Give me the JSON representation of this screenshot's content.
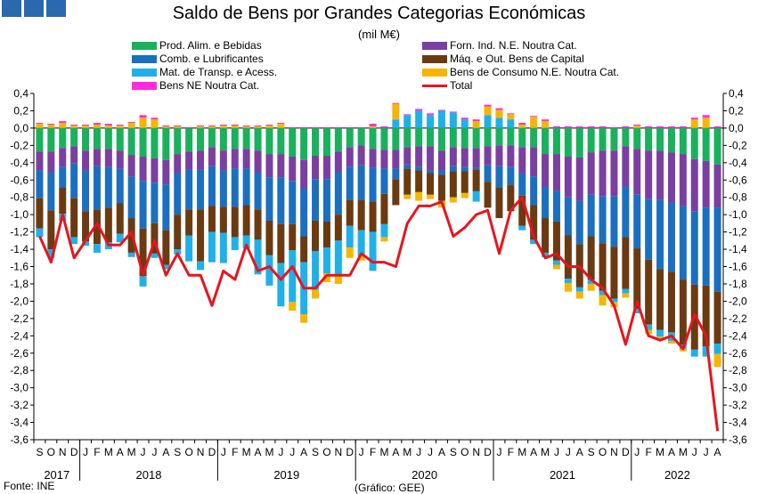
{
  "header": {
    "title": "Saldo de Bens por Grandes Categorias Económicas",
    "subtitle": "(mil M€)"
  },
  "footer": {
    "source": "Fonte: INE",
    "credit": "(Gráfico: GEE)"
  },
  "legend": [
    {
      "label": "Prod. Alim. e Bebidas",
      "color": "#19b15b"
    },
    {
      "label": "Forn. Ind. N.E. Noutra Cat.",
      "color": "#7a3fa0"
    },
    {
      "label": "Comb. e Lubrificantes",
      "color": "#1a6fc0"
    },
    {
      "label": "Máq. e Out. Bens de Capital",
      "color": "#6b3a10"
    },
    {
      "label": "Mat. de Transp. e Acess.",
      "color": "#1fb0ea"
    },
    {
      "label": "Bens de Consumo N.E. Noutra Cat.",
      "color": "#f7b500"
    },
    {
      "label": "Bens NE Noutra Cat.",
      "color": "#ff2be0"
    },
    {
      "label": "Total",
      "color": "#e8141c"
    }
  ],
  "chart_data": {
    "type": "bar",
    "stacked": true,
    "overlay_line": "Total",
    "x_month_labels": [
      "S",
      "O",
      "N",
      "D",
      "J",
      "F",
      "M",
      "A",
      "M",
      "J",
      "J",
      "A",
      "S",
      "O",
      "N",
      "D",
      "J",
      "F",
      "M",
      "A",
      "M",
      "J",
      "J",
      "A",
      "S",
      "O",
      "N",
      "D",
      "J",
      "F",
      "M",
      "A",
      "M",
      "J",
      "J",
      "A",
      "S",
      "O",
      "N",
      "D",
      "J",
      "F",
      "M",
      "A",
      "M",
      "J",
      "J",
      "A",
      "S",
      "O",
      "N",
      "D",
      "J",
      "F",
      "M",
      "A",
      "M",
      "J",
      "J",
      "A"
    ],
    "x_year_labels": [
      {
        "label": "2017",
        "span": 4
      },
      {
        "label": "2018",
        "span": 12
      },
      {
        "label": "2019",
        "span": 12
      },
      {
        "label": "2020",
        "span": 12
      },
      {
        "label": "2021",
        "span": 12
      },
      {
        "label": "2022",
        "span": 8
      }
    ],
    "ylim": [
      -3.6,
      0.4
    ],
    "y_ticks": [
      "0,4",
      "0,2",
      "0,0",
      "-0,2",
      "-0,4",
      "-0,6",
      "-0,8",
      "-1,0",
      "-1,2",
      "-1,4",
      "-1,6",
      "-1,8",
      "-2,0",
      "-2,2",
      "-2,4",
      "-2,6",
      "-2,8",
      "-3,0",
      "-3,2",
      "-3,4",
      "-3,6"
    ],
    "series": [
      {
        "name": "Prod. Alim. e Bebidas",
        "color": "#19b15b",
        "values": [
          -0.27,
          -0.27,
          -0.23,
          -0.21,
          -0.26,
          -0.24,
          -0.24,
          -0.26,
          -0.31,
          -0.33,
          -0.35,
          -0.37,
          -0.3,
          -0.27,
          -0.26,
          -0.22,
          -0.26,
          -0.24,
          -0.24,
          -0.26,
          -0.3,
          -0.3,
          -0.33,
          -0.37,
          -0.32,
          -0.32,
          -0.27,
          -0.22,
          -0.2,
          -0.24,
          -0.25,
          -0.25,
          -0.22,
          -0.21,
          -0.21,
          -0.26,
          -0.22,
          -0.23,
          -0.23,
          -0.21,
          -0.2,
          -0.2,
          -0.22,
          -0.22,
          -0.3,
          -0.3,
          -0.33,
          -0.34,
          -0.28,
          -0.26,
          -0.26,
          -0.21,
          -0.24,
          -0.26,
          -0.26,
          -0.28,
          -0.3,
          -0.36,
          -0.38,
          -0.42
        ]
      },
      {
        "name": "Forn. Ind. N.E. Noutra Cat.",
        "color": "#7a3fa0",
        "values": [
          -0.22,
          -0.24,
          -0.22,
          -0.2,
          -0.23,
          -0.2,
          -0.21,
          -0.21,
          -0.25,
          -0.28,
          -0.28,
          -0.28,
          -0.22,
          -0.21,
          -0.22,
          -0.22,
          -0.23,
          -0.23,
          -0.23,
          -0.25,
          -0.27,
          -0.27,
          -0.28,
          -0.33,
          -0.27,
          -0.27,
          -0.24,
          -0.23,
          -0.23,
          -0.22,
          -0.22,
          -0.22,
          -0.2,
          -0.24,
          -0.28,
          -0.23,
          -0.22,
          -0.22,
          -0.23,
          -0.22,
          -0.24,
          -0.25,
          -0.3,
          -0.34,
          -0.38,
          -0.43,
          -0.47,
          -0.5,
          -0.49,
          -0.53,
          -0.53,
          -0.47,
          -0.53,
          -0.56,
          -0.57,
          -0.58,
          -0.6,
          -0.6,
          -0.54,
          -0.5
        ]
      },
      {
        "name": "Comb. e Lubrificantes",
        "color": "#1a6fc0",
        "values": [
          -0.32,
          -0.44,
          -0.24,
          -0.4,
          -0.47,
          -0.5,
          -0.47,
          -0.4,
          -0.48,
          -0.55,
          -0.47,
          -0.53,
          -0.48,
          -0.46,
          -0.46,
          -0.46,
          -0.42,
          -0.44,
          -0.42,
          -0.43,
          -0.5,
          -0.54,
          -0.5,
          -0.55,
          -0.48,
          -0.49,
          -0.49,
          -0.38,
          -0.4,
          -0.39,
          -0.29,
          -0.12,
          -0.05,
          -0.04,
          -0.03,
          -0.05,
          -0.06,
          -0.05,
          -0.02,
          -0.19,
          -0.25,
          -0.21,
          -0.26,
          -0.33,
          -0.36,
          -0.35,
          -0.44,
          -0.5,
          -0.48,
          -0.54,
          -0.58,
          -0.58,
          -0.62,
          -0.7,
          -0.8,
          -0.8,
          -0.85,
          -0.85,
          -0.9,
          -0.97
        ]
      },
      {
        "name": "Máq. e Out. Bens de Capital",
        "color": "#6b3a10",
        "values": [
          -0.35,
          -0.45,
          -0.3,
          -0.45,
          -0.35,
          -0.4,
          -0.4,
          -0.35,
          -0.4,
          -0.55,
          -0.35,
          -0.4,
          -0.4,
          -0.3,
          -0.6,
          -0.3,
          -0.3,
          -0.35,
          -0.35,
          -0.35,
          -0.4,
          -0.45,
          -0.3,
          -0.3,
          -0.35,
          -0.3,
          -0.3,
          -0.3,
          -0.35,
          -0.35,
          -0.35,
          -0.3,
          -0.3,
          -0.25,
          -0.25,
          -0.3,
          -0.3,
          -0.25,
          -0.25,
          -0.3,
          -0.35,
          -0.3,
          -0.35,
          -0.4,
          -0.4,
          -0.45,
          -0.5,
          -0.5,
          -0.5,
          -0.55,
          -0.6,
          -0.6,
          -0.7,
          -0.75,
          -0.7,
          -0.7,
          -0.75,
          -0.75,
          -0.7,
          -0.6
        ]
      },
      {
        "name": "Mat. de Transp. e Acess.",
        "color": "#1fb0ea",
        "values": [
          -0.1,
          -0.1,
          -0.08,
          -0.08,
          -0.05,
          -0.1,
          -0.08,
          -0.1,
          -0.05,
          -0.12,
          -0.05,
          -0.05,
          -0.06,
          -0.3,
          -0.1,
          -0.35,
          -0.35,
          -0.15,
          -0.15,
          -0.4,
          -0.35,
          -0.5,
          -0.6,
          -0.6,
          -0.45,
          -0.3,
          -0.4,
          -0.25,
          -0.3,
          -0.45,
          -0.15,
          0.1,
          0.15,
          0.2,
          0.15,
          0.2,
          0.18,
          0.1,
          -0.12,
          0.15,
          0.12,
          0.1,
          -0.05,
          -0.05,
          -0.05,
          -0.05,
          -0.05,
          -0.05,
          -0.05,
          -0.05,
          -0.04,
          -0.05,
          -0.05,
          -0.06,
          -0.08,
          -0.1,
          -0.05,
          -0.08,
          -0.12,
          -0.12
        ]
      },
      {
        "name": "Bens de Consumo N.E. Noutra Cat.",
        "color": "#f7b500",
        "values": [
          0.05,
          0.04,
          0.06,
          0.03,
          0.03,
          0.04,
          0.03,
          0.03,
          0.06,
          0.12,
          0.1,
          0.02,
          0.02,
          0.0,
          0.02,
          0.02,
          0.03,
          0.03,
          0.02,
          0.02,
          0.03,
          0.05,
          -0.1,
          -0.1,
          -0.1,
          -0.1,
          -0.1,
          -0.12,
          -0.05,
          0.02,
          -0.05,
          0.18,
          -0.05,
          -0.1,
          -0.05,
          -0.08,
          -0.06,
          -0.06,
          0.08,
          0.1,
          0.09,
          0.06,
          0.04,
          0.13,
          0.08,
          -0.05,
          -0.1,
          -0.08,
          -0.08,
          -0.12,
          -0.06,
          -0.05,
          0.03,
          -0.05,
          -0.04,
          -0.03,
          -0.03,
          0.1,
          0.12,
          -0.15
        ]
      },
      {
        "name": "Bens NE Noutra Cat.",
        "color": "#ff2be0",
        "values": [
          0.01,
          0.01,
          0.02,
          0.01,
          0.01,
          0.02,
          0.02,
          0.01,
          0.01,
          0.03,
          0.02,
          0.01,
          0.01,
          0.01,
          0.01,
          0.01,
          0.01,
          0.01,
          0.01,
          0.01,
          0.01,
          0.01,
          0.01,
          0.01,
          0.01,
          0.01,
          0.01,
          0.01,
          0.01,
          0.03,
          0.02,
          0.01,
          0.01,
          0.02,
          0.02,
          0.01,
          0.01,
          0.02,
          0.02,
          0.02,
          0.02,
          0.01,
          0.02,
          0.01,
          0.02,
          0.02,
          0.02,
          0.02,
          0.02,
          0.02,
          0.01,
          0.02,
          0.01,
          0.02,
          0.02,
          0.02,
          0.02,
          0.02,
          0.03,
          0.02
        ]
      },
      {
        "name": "Total",
        "color": "#e8141c",
        "line": true,
        "values": [
          -1.25,
          -1.55,
          -1.0,
          -1.5,
          -1.3,
          -1.1,
          -1.35,
          -1.35,
          -1.2,
          -1.7,
          -1.3,
          -1.7,
          -1.45,
          -1.7,
          -1.7,
          -2.05,
          -1.65,
          -1.75,
          -1.35,
          -1.65,
          -1.6,
          -1.75,
          -1.6,
          -1.85,
          -1.85,
          -1.7,
          -1.7,
          -1.7,
          -1.45,
          -1.55,
          -1.55,
          -1.6,
          -1.1,
          -0.9,
          -0.9,
          -0.85,
          -1.25,
          -1.15,
          -1.0,
          -0.95,
          -1.45,
          -0.95,
          -0.8,
          -1.25,
          -1.5,
          -1.45,
          -1.6,
          -1.6,
          -1.75,
          -1.85,
          -2.05,
          -2.5,
          -2.0,
          -2.4,
          -2.45,
          -2.4,
          -2.55,
          -2.15,
          -2.4,
          -3.5
        ]
      }
    ]
  }
}
